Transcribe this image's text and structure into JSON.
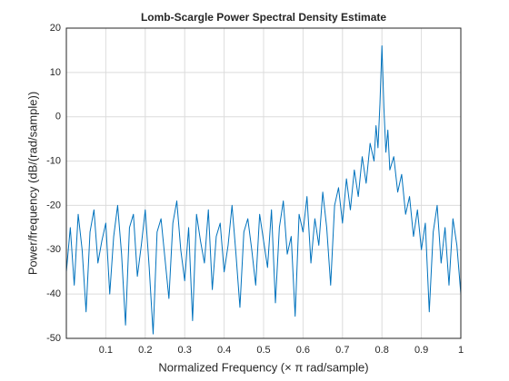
{
  "chart_data": {
    "type": "line",
    "title": "Lomb-Scargle Power Spectral Density Estimate",
    "xlabel": "Normalized  Frequency    (× π  rad/sample)",
    "ylabel": "Power/frequency (dB/(rad/sample))",
    "x": [
      0,
      0.01,
      0.02,
      0.03,
      0.04,
      0.05,
      0.06,
      0.07,
      0.08,
      0.09,
      0.1,
      0.11,
      0.12,
      0.13,
      0.14,
      0.15,
      0.16,
      0.17,
      0.18,
      0.19,
      0.2,
      0.21,
      0.22,
      0.23,
      0.24,
      0.25,
      0.26,
      0.27,
      0.28,
      0.29,
      0.3,
      0.31,
      0.32,
      0.33,
      0.34,
      0.35,
      0.36,
      0.37,
      0.38,
      0.39,
      0.4,
      0.41,
      0.42,
      0.43,
      0.44,
      0.45,
      0.46,
      0.47,
      0.48,
      0.49,
      0.5,
      0.51,
      0.52,
      0.53,
      0.54,
      0.55,
      0.56,
      0.57,
      0.58,
      0.59,
      0.6,
      0.61,
      0.62,
      0.63,
      0.64,
      0.65,
      0.66,
      0.67,
      0.68,
      0.69,
      0.7,
      0.71,
      0.72,
      0.73,
      0.74,
      0.75,
      0.76,
      0.77,
      0.78,
      0.785,
      0.79,
      0.795,
      0.8,
      0.805,
      0.81,
      0.815,
      0.82,
      0.83,
      0.84,
      0.85,
      0.86,
      0.87,
      0.88,
      0.89,
      0.9,
      0.91,
      0.92,
      0.93,
      0.94,
      0.95,
      0.96,
      0.97,
      0.98,
      0.99,
      1
    ],
    "series": [
      {
        "name": "PSD",
        "color": "#0072bd",
        "values": [
          -35,
          -25,
          -38,
          -22,
          -30,
          -44,
          -26,
          -21,
          -33,
          -28,
          -24,
          -40,
          -27,
          -20,
          -31,
          -47,
          -25,
          -22,
          -36,
          -29,
          -21,
          -34,
          -49,
          -26,
          -23,
          -32,
          -41,
          -24,
          -19,
          -30,
          -37,
          -25,
          -46,
          -22,
          -28,
          -33,
          -21,
          -39,
          -27,
          -24,
          -35,
          -29,
          -20,
          -31,
          -43,
          -26,
          -23,
          -30,
          -38,
          -22,
          -28,
          -34,
          -21,
          -42,
          -25,
          -19,
          -31,
          -27,
          -45,
          -22,
          -26,
          -18,
          -33,
          -23,
          -29,
          -17,
          -25,
          -38,
          -20,
          -16,
          -24,
          -14,
          -21,
          -12,
          -18,
          -9,
          -15,
          -6,
          -10,
          -2,
          -7,
          3,
          16,
          2,
          -8,
          -3,
          -12,
          -9,
          -17,
          -13,
          -22,
          -18,
          -27,
          -21,
          -30,
          -24,
          -44,
          -26,
          -20,
          -33,
          -25,
          -38,
          -23,
          -29,
          -40
        ]
      }
    ],
    "xlim": [
      0,
      1
    ],
    "xticks": [
      0.1,
      0.2,
      0.3,
      0.4,
      0.5,
      0.6,
      0.7,
      0.8,
      0.9,
      1
    ],
    "ylim": [
      -50,
      20
    ],
    "yticks": [
      -50,
      -40,
      -30,
      -20,
      -10,
      0,
      10,
      20
    ],
    "grid": true
  }
}
